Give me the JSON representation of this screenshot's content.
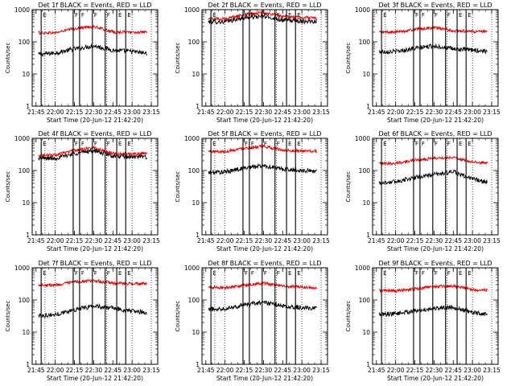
{
  "chart_data": [
    {
      "type": "line",
      "title": "Det 1f BLACK = Events, RED = LLD",
      "xlabel": "Start Time (20-Jun-12 21:42:20)",
      "ylabel": "Counts/sec",
      "yscale": "log",
      "ylim": [
        1,
        1000
      ],
      "xlim": [
        "21:42",
        "23:20"
      ],
      "xticks": [
        "21:45",
        "22:00",
        "22:15",
        "22:30",
        "22:45",
        "23:00",
        "23:15"
      ],
      "yticks": [
        "1",
        "10",
        "100",
        "1000"
      ],
      "markers": [
        "E",
        "F",
        "F",
        "F",
        "F",
        "E",
        "E"
      ],
      "series": [
        {
          "name": "BLACK = Events",
          "color": "#000000",
          "x": [
            "21:45",
            "22:00",
            "22:15",
            "22:30",
            "22:45",
            "23:00",
            "23:15"
          ],
          "values": [
            40,
            45,
            60,
            75,
            55,
            50,
            42
          ]
        },
        {
          "name": "RED = LLD",
          "color": "#e00000",
          "x": [
            "21:45",
            "22:00",
            "22:15",
            "22:30",
            "22:45",
            "23:00",
            "23:15"
          ],
          "values": [
            190,
            190,
            260,
            300,
            200,
            200,
            195
          ]
        }
      ]
    },
    {
      "type": "line",
      "title": "Det 2f BLACK = Events, RED = LLD",
      "xlabel": "Start Time (20-Jun-12 21:42:20)",
      "ylabel": "Counts/sec",
      "yscale": "log",
      "ylim": [
        1,
        1000
      ],
      "xlim": [
        "21:42",
        "23:20"
      ],
      "xticks": [
        "21:45",
        "22:00",
        "22:15",
        "22:30",
        "22:45",
        "23:00",
        "23:15"
      ],
      "yticks": [
        "1",
        "10",
        "100",
        "1000"
      ],
      "markers": [
        "E",
        "F",
        "F",
        "F",
        "F",
        "E",
        "E"
      ],
      "series": [
        {
          "name": "BLACK = Events",
          "color": "#000000",
          "x": [
            "21:45",
            "22:00",
            "22:15",
            "22:30",
            "22:45",
            "23:00",
            "23:15"
          ],
          "values": [
            420,
            420,
            560,
            620,
            480,
            440,
            440
          ]
        },
        {
          "name": "RED = LLD",
          "color": "#e00000",
          "x": [
            "21:45",
            "22:00",
            "22:15",
            "22:30",
            "22:45",
            "23:00",
            "23:15"
          ],
          "values": [
            520,
            520,
            700,
            820,
            600,
            560,
            580
          ]
        }
      ]
    },
    {
      "type": "line",
      "title": "Det 3f BLACK = Events, RED = LLD",
      "xlabel": "Start Time (20-Jun-12 21:42:20)",
      "ylabel": "Counts/sec",
      "yscale": "log",
      "ylim": [
        1,
        1000
      ],
      "xlim": [
        "21:42",
        "23:20"
      ],
      "xticks": [
        "21:45",
        "22:00",
        "22:15",
        "22:30",
        "22:45",
        "23:00",
        "23:15"
      ],
      "yticks": [
        "1",
        "10",
        "100",
        "1000"
      ],
      "markers": [
        "E",
        "F",
        "F",
        "F",
        "F",
        "E",
        "E"
      ],
      "series": [
        {
          "name": "BLACK = Events",
          "color": "#000000",
          "x": [
            "21:45",
            "22:00",
            "22:15",
            "22:30",
            "22:45",
            "23:00",
            "23:15"
          ],
          "values": [
            50,
            50,
            62,
            75,
            60,
            55,
            50
          ]
        },
        {
          "name": "RED = LLD",
          "color": "#e00000",
          "x": [
            "21:45",
            "22:00",
            "22:15",
            "22:30",
            "22:45",
            "23:00",
            "23:15"
          ],
          "values": [
            200,
            200,
            240,
            280,
            220,
            210,
            200
          ]
        }
      ]
    },
    {
      "type": "line",
      "title": "Det 4f BLACK = Events, RED = LLD",
      "xlabel": "Start Time (20-Jun-12 21:42:20)",
      "ylabel": "Counts/sec",
      "yscale": "log",
      "ylim": [
        1,
        1000
      ],
      "xlim": [
        "21:42",
        "23:20"
      ],
      "xticks": [
        "21:45",
        "22:00",
        "22:15",
        "22:30",
        "22:45",
        "23:00",
        "23:15"
      ],
      "yticks": [
        "1",
        "10",
        "100",
        "1000"
      ],
      "markers": [
        "E",
        "F",
        "F",
        "F",
        "F",
        "E",
        "E"
      ],
      "series": [
        {
          "name": "BLACK = Events",
          "color": "#000000",
          "x": [
            "21:45",
            "22:00",
            "22:15",
            "22:30",
            "22:45",
            "23:00",
            "23:15"
          ],
          "values": [
            240,
            240,
            340,
            420,
            280,
            260,
            270
          ]
        },
        {
          "name": "RED = LLD",
          "color": "#e00000",
          "x": [
            "21:45",
            "22:00",
            "22:15",
            "22:30",
            "22:45",
            "23:00",
            "23:15"
          ],
          "values": [
            300,
            300,
            420,
            520,
            340,
            320,
            350
          ]
        }
      ]
    },
    {
      "type": "line",
      "title": "Det 5f BLACK = Events, RED = LLD",
      "xlabel": "Start Time (20-Jun-12 21:42:20)",
      "ylabel": "Counts/sec",
      "yscale": "log",
      "ylim": [
        1,
        1000
      ],
      "xlim": [
        "21:42",
        "23:20"
      ],
      "xticks": [
        "21:45",
        "22:00",
        "22:15",
        "22:30",
        "22:45",
        "23:00",
        "23:15"
      ],
      "yticks": [
        "1",
        "10",
        "100",
        "1000"
      ],
      "markers": [
        "E",
        "F",
        "F",
        "F",
        "F",
        "E",
        "E"
      ],
      "series": [
        {
          "name": "BLACK = Events",
          "color": "#000000",
          "x": [
            "21:45",
            "22:00",
            "22:15",
            "22:30",
            "22:45",
            "23:00",
            "23:15"
          ],
          "values": [
            85,
            90,
            120,
            140,
            110,
            100,
            95
          ]
        },
        {
          "name": "RED = LLD",
          "color": "#e00000",
          "x": [
            "21:45",
            "22:00",
            "22:15",
            "22:30",
            "22:45",
            "23:00",
            "23:15"
          ],
          "values": [
            390,
            390,
            500,
            560,
            430,
            400,
            390
          ]
        }
      ]
    },
    {
      "type": "line",
      "title": "Det 6f BLACK = Events, RED = LLD",
      "xlabel": "Start Time (20-Jun-12 21:42:20)",
      "ylabel": "Counts/sec",
      "yscale": "log",
      "ylim": [
        1,
        1000
      ],
      "xlim": [
        "21:42",
        "23:20"
      ],
      "xticks": [
        "21:45",
        "22:00",
        "22:15",
        "22:30",
        "22:45",
        "23:00",
        "23:15"
      ],
      "yticks": [
        "1",
        "10",
        "100",
        "1000"
      ],
      "markers": [
        "E",
        "F",
        "F",
        "F",
        "F",
        "E",
        "E"
      ],
      "series": [
        {
          "name": "BLACK = Events",
          "color": "#000000",
          "x": [
            "21:45",
            "22:00",
            "22:15",
            "22:30",
            "22:45",
            "23:00",
            "23:15"
          ],
          "values": [
            40,
            45,
            60,
            75,
            90,
            55,
            40
          ]
        },
        {
          "name": "RED = LLD",
          "color": "#e00000",
          "x": [
            "21:45",
            "22:00",
            "22:15",
            "22:30",
            "22:45",
            "23:00",
            "23:15"
          ],
          "values": [
            160,
            170,
            210,
            240,
            260,
            180,
            170
          ]
        }
      ]
    },
    {
      "type": "line",
      "title": "Det 7f BLACK = Events, RED = LLD",
      "xlabel": "Start Time (20-Jun-12 21:42:20)",
      "ylabel": "Counts/sec",
      "yscale": "log",
      "ylim": [
        1,
        1000
      ],
      "xlim": [
        "21:42",
        "23:20"
      ],
      "xticks": [
        "21:45",
        "22:00",
        "22:15",
        "22:30",
        "22:45",
        "23:00",
        "23:15"
      ],
      "yticks": [
        "1",
        "10",
        "100",
        "1000"
      ],
      "markers": [
        "E",
        "F",
        "F",
        "F",
        "F",
        "E",
        "E"
      ],
      "series": [
        {
          "name": "BLACK = Events",
          "color": "#000000",
          "x": [
            "21:45",
            "22:00",
            "22:15",
            "22:30",
            "22:45",
            "23:00",
            "23:15"
          ],
          "values": [
            32,
            35,
            50,
            65,
            55,
            45,
            40
          ]
        },
        {
          "name": "RED = LLD",
          "color": "#e00000",
          "x": [
            "21:45",
            "22:00",
            "22:15",
            "22:30",
            "22:45",
            "23:00",
            "23:15"
          ],
          "values": [
            300,
            290,
            360,
            400,
            330,
            320,
            320
          ]
        }
      ]
    },
    {
      "type": "line",
      "title": "Det 8f BLACK = Events, RED = LLD",
      "xlabel": "Start Time (20-Jun-12 21:42:20)",
      "ylabel": "Counts/sec",
      "yscale": "log",
      "ylim": [
        1,
        1000
      ],
      "xlim": [
        "21:42",
        "23:20"
      ],
      "xticks": [
        "21:45",
        "22:00",
        "22:15",
        "22:30",
        "22:45",
        "23:00",
        "23:15"
      ],
      "yticks": [
        "1",
        "10",
        "100",
        "1000"
      ],
      "markers": [
        "E",
        "F",
        "F",
        "F",
        "F",
        "E",
        "E"
      ],
      "series": [
        {
          "name": "BLACK = Events",
          "color": "#000000",
          "x": [
            "21:45",
            "22:00",
            "22:15",
            "22:30",
            "22:45",
            "23:00",
            "23:15"
          ],
          "values": [
            50,
            55,
            70,
            85,
            65,
            58,
            52
          ]
        },
        {
          "name": "RED = LLD",
          "color": "#e00000",
          "x": [
            "21:45",
            "22:00",
            "22:15",
            "22:30",
            "22:45",
            "23:00",
            "23:15"
          ],
          "values": [
            250,
            240,
            290,
            330,
            270,
            250,
            240
          ]
        }
      ]
    },
    {
      "type": "line",
      "title": "Det 9f BLACK = Events, RED = LLD",
      "xlabel": "Start Time (20-Jun-12 21:42:20)",
      "ylabel": "Counts/sec",
      "yscale": "log",
      "ylim": [
        1,
        1000
      ],
      "xlim": [
        "21:42",
        "23:20"
      ],
      "xticks": [
        "21:45",
        "22:00",
        "22:15",
        "22:30",
        "22:45",
        "23:00",
        "23:15"
      ],
      "yticks": [
        "1",
        "10",
        "100",
        "1000"
      ],
      "markers": [
        "E",
        "F",
        "F",
        "F",
        "F",
        "E",
        "E"
      ],
      "series": [
        {
          "name": "BLACK = Events",
          "color": "#000000",
          "x": [
            "21:45",
            "22:00",
            "22:15",
            "22:30",
            "22:45",
            "23:00",
            "23:15"
          ],
          "values": [
            35,
            38,
            45,
            55,
            60,
            40,
            35
          ]
        },
        {
          "name": "RED = LLD",
          "color": "#e00000",
          "x": [
            "21:45",
            "22:00",
            "22:15",
            "22:30",
            "22:45",
            "23:00",
            "23:15"
          ],
          "values": [
            200,
            190,
            220,
            260,
            270,
            210,
            200
          ]
        }
      ]
    }
  ]
}
